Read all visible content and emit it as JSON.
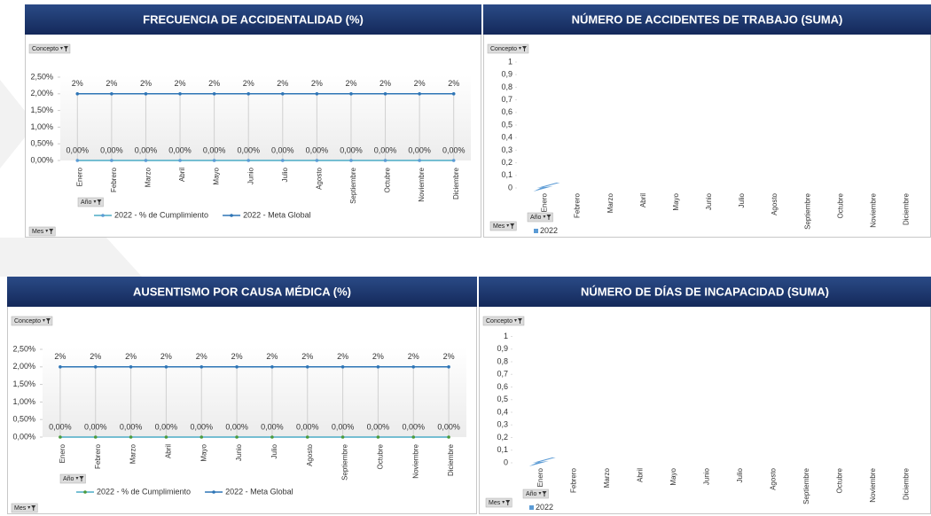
{
  "chart_data": [
    {
      "type": "line",
      "title": "FRECUENCIA DE ACCIDENTALIDAD (%)",
      "filters": [
        "Concepto",
        "Año",
        "Mes"
      ],
      "categories": [
        "Enero",
        "Febrero",
        "Marzo",
        "Abril",
        "Mayo",
        "Junio",
        "Julio",
        "Agosto",
        "Septiembre",
        "Octubre",
        "Noviembre",
        "Diciembre"
      ],
      "series": [
        {
          "name": "2022 - % de Cumplimiento",
          "color": "#4bacc6",
          "marker_color": "#5b9bd5",
          "values": [
            0,
            0,
            0,
            0,
            0,
            0,
            0,
            0,
            0,
            0,
            0,
            0
          ],
          "value_labels": [
            "0,00%",
            "0,00%",
            "0,00%",
            "0,00%",
            "0,00%",
            "0,00%",
            "0,00%",
            "0,00%",
            "0,00%",
            "0,00%",
            "0,00%",
            "0,00%"
          ]
        },
        {
          "name": "2022 - Meta Global",
          "color": "#2e75b6",
          "marker_color": "#2e75b6",
          "values": [
            2,
            2,
            2,
            2,
            2,
            2,
            2,
            2,
            2,
            2,
            2,
            2
          ],
          "value_labels": [
            "2%",
            "2%",
            "2%",
            "2%",
            "2%",
            "2%",
            "2%",
            "2%",
            "2%",
            "2%",
            "2%",
            "2%"
          ]
        }
      ],
      "ylim": [
        0,
        2.5
      ],
      "yticks": [
        {
          "value": 0,
          "label": "0,00%"
        },
        {
          "value": 0.5,
          "label": "0,50%"
        },
        {
          "value": 1,
          "label": "1,00%"
        },
        {
          "value": 1.5,
          "label": "1,50%"
        },
        {
          "value": 2,
          "label": "2,00%"
        },
        {
          "value": 2.5,
          "label": "2,50%"
        }
      ]
    },
    {
      "type": "bar",
      "title": "NÚMERO DE ACCIDENTES DE TRABAJO  (SUMA)",
      "filters": [
        "Concepto",
        "Año",
        "Mes"
      ],
      "categories": [
        "Enero",
        "Febrero",
        "Marzo",
        "Abril",
        "Mayo",
        "Junio",
        "Julio",
        "Agosto",
        "Septiembre",
        "Octubre",
        "Noviembre",
        "Diciembre"
      ],
      "series": [
        {
          "name": "2022",
          "color": "#5b9bd5",
          "values": [
            0,
            null,
            null,
            null,
            null,
            null,
            null,
            null,
            null,
            null,
            null,
            null
          ]
        }
      ],
      "ylim": [
        0,
        1
      ],
      "yticks": [
        0,
        {
          "value": 0.1,
          "label": "0,1"
        },
        {
          "value": 0.2,
          "label": "0,2"
        },
        {
          "value": 0.3,
          "label": "0,3"
        },
        {
          "value": 0.4,
          "label": "0,4"
        },
        {
          "value": 0.5,
          "label": "0,5"
        },
        {
          "value": 0.6,
          "label": "0,6"
        },
        {
          "value": 0.7,
          "label": "0,7"
        },
        {
          "value": 0.8,
          "label": "0,8"
        },
        {
          "value": 0.9,
          "label": "0,9"
        },
        1
      ]
    },
    {
      "type": "line",
      "title": "AUSENTISMO POR CAUSA MÉDICA (%)",
      "filters": [
        "Concepto",
        "Año",
        "Mes"
      ],
      "categories": [
        "Enero",
        "Febrero",
        "Marzo",
        "Abril",
        "Mayo",
        "Junio",
        "Julio",
        "Agosto",
        "Septiembre",
        "Octubre",
        "Noviembre",
        "Diciembre"
      ],
      "series": [
        {
          "name": "2022 - % de Cumplimiento",
          "color": "#4bacc6",
          "marker_color": "#4a9a3c",
          "values": [
            0,
            0,
            0,
            0,
            0,
            0,
            0,
            0,
            0,
            0,
            0,
            0
          ],
          "value_labels": [
            "0,00%",
            "0,00%",
            "0,00%",
            "0,00%",
            "0,00%",
            "0,00%",
            "0,00%",
            "0,00%",
            "0,00%",
            "0,00%",
            "0,00%",
            "0,00%"
          ]
        },
        {
          "name": "2022 - Meta Global",
          "color": "#2e75b6",
          "marker_color": "#2e75b6",
          "values": [
            2,
            2,
            2,
            2,
            2,
            2,
            2,
            2,
            2,
            2,
            2,
            2
          ],
          "value_labels": [
            "2%",
            "2%",
            "2%",
            "2%",
            "2%",
            "2%",
            "2%",
            "2%",
            "2%",
            "2%",
            "2%",
            "2%"
          ]
        }
      ],
      "ylim": [
        0,
        2.5
      ],
      "yticks": [
        {
          "value": 0,
          "label": "0,00%"
        },
        {
          "value": 0.5,
          "label": "0,50%"
        },
        {
          "value": 1,
          "label": "1,00%"
        },
        {
          "value": 1.5,
          "label": "1,50%"
        },
        {
          "value": 2,
          "label": "2,00%"
        },
        {
          "value": 2.5,
          "label": "2,50%"
        }
      ]
    },
    {
      "type": "bar",
      "title": "NÚMERO DE DÍAS DE INCAPACIDAD (SUMA)",
      "filters": [
        "Concepto",
        "Año",
        "Mes"
      ],
      "categories": [
        "Enero",
        "Febrero",
        "Marzo",
        "Abril",
        "Mayo",
        "Junio",
        "Julio",
        "Agosto",
        "Septiembre",
        "Octubre",
        "Noviembre",
        "Diciembre"
      ],
      "series": [
        {
          "name": "2022",
          "color": "#5b9bd5",
          "values": [
            0,
            null,
            null,
            null,
            null,
            null,
            null,
            null,
            null,
            null,
            null,
            null
          ]
        }
      ],
      "ylim": [
        0,
        1
      ],
      "yticks": [
        0,
        {
          "value": 0.1,
          "label": "0,1"
        },
        {
          "value": 0.2,
          "label": "0,2"
        },
        {
          "value": 0.3,
          "label": "0,3"
        },
        {
          "value": 0.4,
          "label": "0,4"
        },
        {
          "value": 0.5,
          "label": "0,5"
        },
        {
          "value": 0.6,
          "label": "0,6"
        },
        {
          "value": 0.7,
          "label": "0,7"
        },
        {
          "value": 0.8,
          "label": "0,8"
        },
        {
          "value": 0.9,
          "label": "0,9"
        },
        1
      ]
    }
  ]
}
